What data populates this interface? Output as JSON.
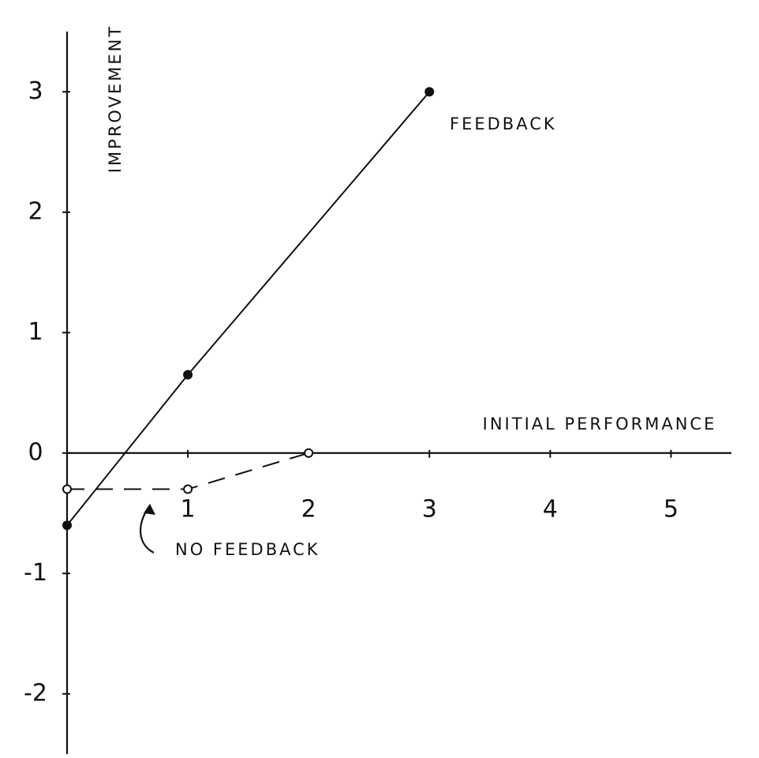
{
  "chart_data": {
    "type": "line",
    "ylabel": "IMPROVEMENT",
    "xlabel": "INITIAL PERFORMANCE",
    "xlim": [
      0,
      5.5
    ],
    "ylim": [
      -2.5,
      3.5
    ],
    "xticks": [
      1,
      2,
      3,
      4,
      5
    ],
    "yticks": [
      -2,
      -1,
      0,
      1,
      2,
      3
    ],
    "series": [
      {
        "name": "FEEDBACK",
        "color": "#111111",
        "x": [
          0,
          1,
          3
        ],
        "values": [
          -0.6,
          0.65,
          3
        ],
        "style": "solid",
        "marker": "filled"
      },
      {
        "name": "NO FEEDBACK",
        "color": "#111111",
        "x": [
          0,
          1,
          2
        ],
        "values": [
          -0.3,
          -0.3,
          0
        ],
        "style": "dashed",
        "marker": "hollow"
      }
    ]
  }
}
